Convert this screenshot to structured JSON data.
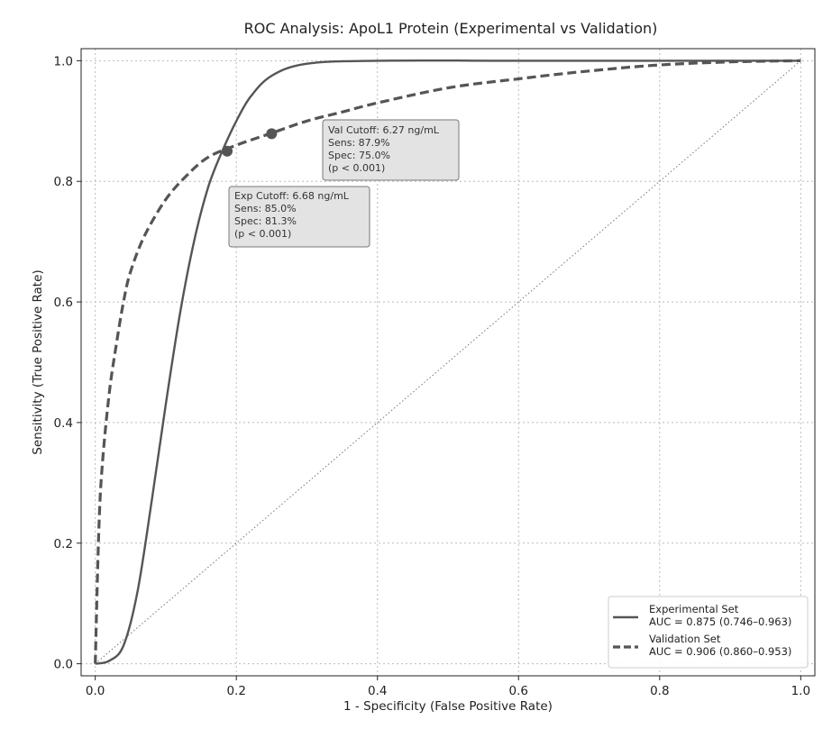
{
  "chart_data": {
    "type": "line",
    "title": "ROC Analysis: ApoL1 Protein (Experimental vs Validation)",
    "xlabel": "1 - Specificity (False Positive Rate)",
    "ylabel": "Sensitivity (True Positive Rate)",
    "xlim": [
      -0.02,
      1.02
    ],
    "ylim": [
      -0.02,
      1.02
    ],
    "xticks": [
      "0.0",
      "0.2",
      "0.4",
      "0.6",
      "0.8",
      "1.0"
    ],
    "yticks": [
      "0.0",
      "0.2",
      "0.4",
      "0.6",
      "0.8",
      "1.0"
    ],
    "grid": true,
    "legend_position": "bottom-right",
    "series": [
      {
        "name": "Experimental Set",
        "auc_label": "AUC = 0.875 (0.746–0.963)",
        "style": "solid",
        "color": "#555555",
        "x": [
          0,
          0.02,
          0.04,
          0.06,
          0.08,
          0.1,
          0.12,
          0.14,
          0.16,
          0.18,
          0.2,
          0.22,
          0.25,
          0.3,
          0.4,
          0.6,
          0.8,
          1.0
        ],
        "y": [
          0,
          0.005,
          0.03,
          0.12,
          0.27,
          0.43,
          0.58,
          0.7,
          0.79,
          0.85,
          0.9,
          0.94,
          0.975,
          0.995,
          1.0,
          1.0,
          1.0,
          1.0
        ]
      },
      {
        "name": "Validation Set",
        "auc_label": "AUC = 0.906 (0.860–0.953)",
        "style": "dashed",
        "color": "#555555",
        "x": [
          0,
          0.005,
          0.01,
          0.02,
          0.03,
          0.04,
          0.05,
          0.07,
          0.1,
          0.13,
          0.16,
          0.2,
          0.25,
          0.3,
          0.35,
          0.4,
          0.5,
          0.6,
          0.7,
          0.8,
          0.9,
          1.0
        ],
        "y": [
          0,
          0.22,
          0.33,
          0.45,
          0.53,
          0.6,
          0.65,
          0.71,
          0.77,
          0.81,
          0.84,
          0.86,
          0.88,
          0.9,
          0.915,
          0.93,
          0.955,
          0.97,
          0.983,
          0.993,
          0.998,
          1.0
        ]
      }
    ],
    "reference_line": {
      "x": [
        0,
        1
      ],
      "y": [
        0,
        1
      ],
      "style": "dotted"
    },
    "cutoff_points": [
      {
        "series": "Experimental Set",
        "x": 0.187,
        "y": 0.85
      },
      {
        "series": "Validation Set",
        "x": 0.25,
        "y": 0.879
      }
    ],
    "annotations": [
      {
        "lines": [
          "Val Cutoff: 6.27 ng/mL",
          "Sens: 87.9%",
          "Spec: 75.0%",
          "(p < 0.001)"
        ]
      },
      {
        "lines": [
          "Exp Cutoff: 6.68 ng/mL",
          "Sens: 85.0%",
          "Spec: 81.3%",
          "(p < 0.001)"
        ]
      }
    ]
  }
}
